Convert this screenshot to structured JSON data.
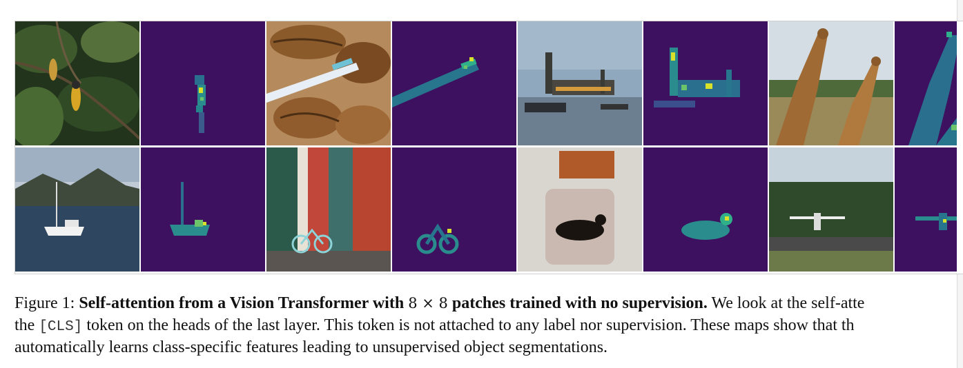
{
  "figure": {
    "colors": {
      "attention_background": "#3d1060",
      "attention_mid": "#2a8c8c",
      "attention_high": "#d8e22a"
    },
    "rows": [
      [
        {
          "kind": "photo",
          "subject": "bird-on-branch"
        },
        {
          "kind": "attention",
          "subject": "bird-attention"
        },
        {
          "kind": "photo",
          "subject": "toothbrush-shells"
        },
        {
          "kind": "attention",
          "subject": "toothbrush-attention"
        },
        {
          "kind": "photo",
          "subject": "parliament-river"
        },
        {
          "kind": "attention",
          "subject": "parliament-attention"
        },
        {
          "kind": "photo",
          "subject": "giraffes"
        },
        {
          "kind": "attention",
          "subject": "giraffe-attention"
        }
      ],
      [
        {
          "kind": "photo",
          "subject": "sailboat"
        },
        {
          "kind": "attention",
          "subject": "sailboat-attention"
        },
        {
          "kind": "photo",
          "subject": "doors-bicycle"
        },
        {
          "kind": "attention",
          "subject": "bicycle-attention"
        },
        {
          "kind": "photo",
          "subject": "dog-armchair"
        },
        {
          "kind": "attention",
          "subject": "dog-attention"
        },
        {
          "kind": "photo",
          "subject": "airplane-field"
        },
        {
          "kind": "attention",
          "subject": "airplane-attention"
        }
      ]
    ]
  },
  "caption": {
    "label": "Figure 1:",
    "bold_part1": "Self-attention from a Vision Transformer with",
    "math": "8 × 8",
    "bold_part2": "patches trained with no supervision.",
    "line1_rest": "We look at the self-atte",
    "line2_start": "the",
    "token": "[CLS]",
    "line2_rest": "token on the heads of the last layer. This token is not attached to any label nor supervision. These maps show that th",
    "line3": "automatically learns class-specific features leading to unsupervised object segmentations."
  }
}
